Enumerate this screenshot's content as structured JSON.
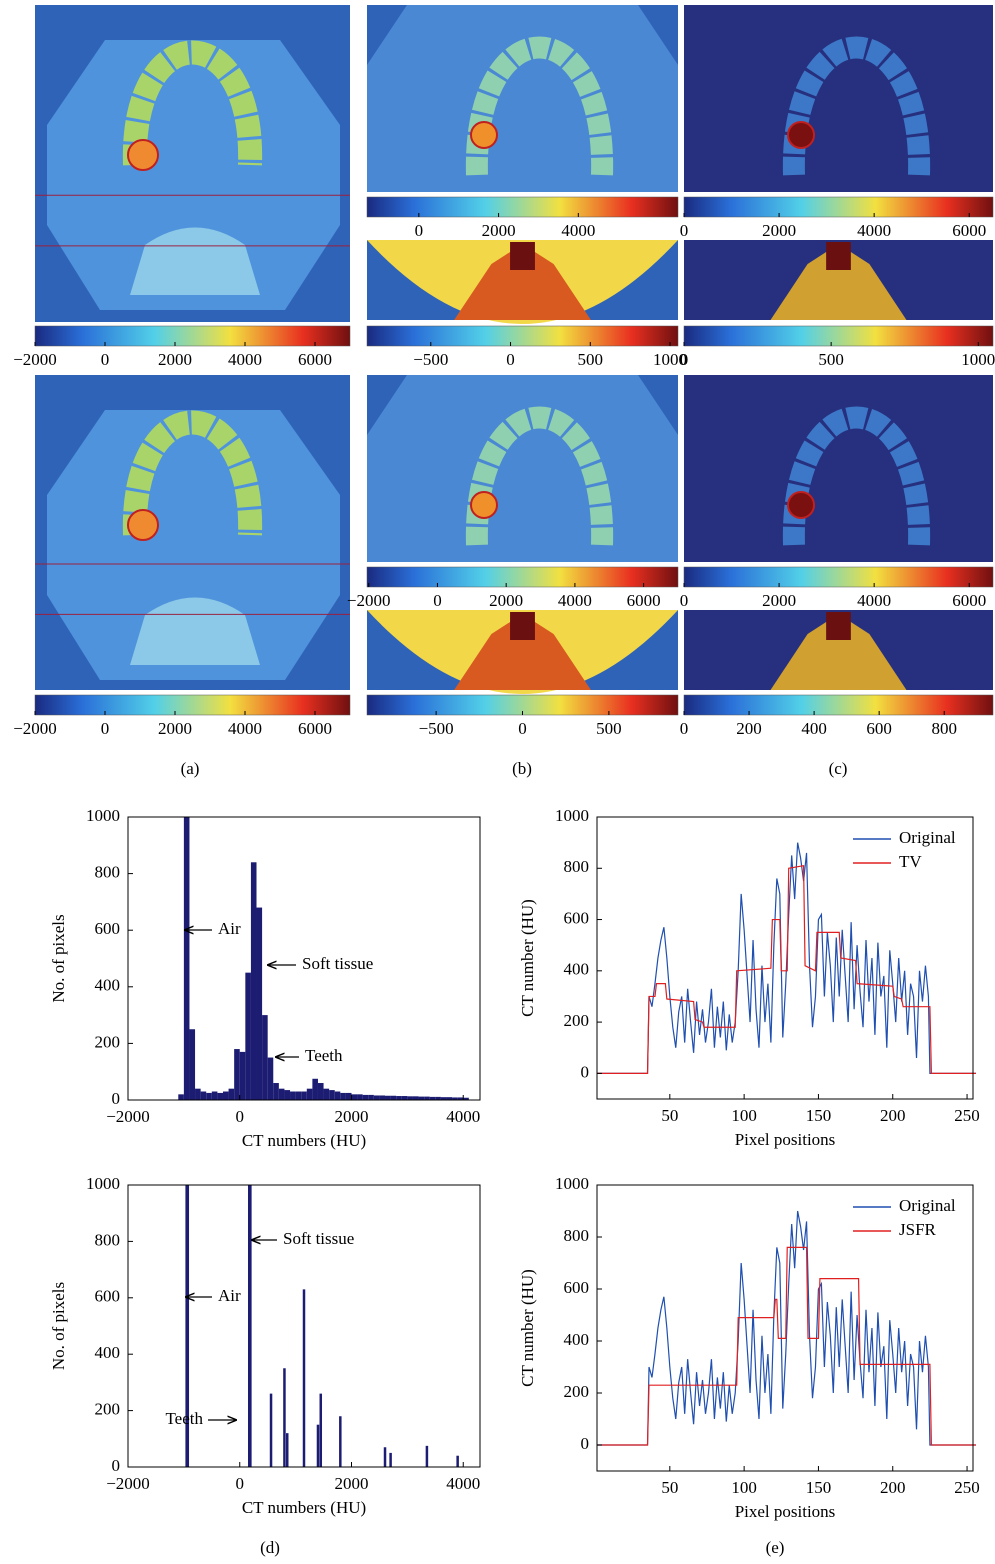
{
  "image_panels": [
    {
      "colorbar_lim": [
        -2000,
        7000
      ],
      "colorbar_ticks": [
        {
          "value": -2000,
          "label": "−2000"
        },
        0,
        2000,
        4000,
        6000
      ]
    },
    {
      "colorbar_lim": [
        -1300,
        6500
      ],
      "colorbar_ticks": [
        0,
        2000,
        4000
      ]
    },
    {
      "colorbar_lim": [
        0,
        6500
      ],
      "colorbar_ticks": [
        0,
        2000,
        4000,
        6000
      ]
    },
    {
      "colorbar_lim": [
        -900,
        1050
      ],
      "colorbar_ticks": [
        {
          "value": -500,
          "label": "−500"
        },
        0,
        500,
        1000
      ]
    },
    {
      "colorbar_lim": [
        0,
        1050
      ],
      "colorbar_ticks": [
        0,
        500,
        1000
      ]
    },
    {
      "colorbar_lim": [
        -2000,
        7000
      ],
      "colorbar_ticks": [
        {
          "value": -2000,
          "label": "−2000"
        },
        0,
        2000,
        4000,
        6000
      ]
    },
    {
      "colorbar_lim": [
        -2050,
        7000
      ],
      "colorbar_ticks": [
        {
          "value": -2000,
          "label": "−2000"
        },
        0,
        2000,
        4000,
        6000
      ]
    },
    {
      "colorbar_lim": [
        0,
        6500
      ],
      "colorbar_ticks": [
        0,
        2000,
        4000,
        6000
      ]
    },
    {
      "colorbar_lim": [
        -900,
        900
      ],
      "colorbar_ticks": [
        {
          "value": -500,
          "label": "−500"
        },
        0,
        500
      ]
    },
    {
      "colorbar_lim": [
        0,
        950
      ],
      "colorbar_ticks": [
        0,
        200,
        400,
        600,
        800
      ]
    }
  ],
  "panel_labels": [
    "(a)",
    "(b)",
    "(c)",
    "(d)",
    "(e)"
  ],
  "chart_data": [
    {
      "type": "histogram",
      "xlabel": "CT numbers (HU)",
      "ylabel": "No. of pixels",
      "color": "#1c1c72",
      "bins": [
        -1100,
        -1000,
        -900,
        -800,
        -700,
        -600,
        -500,
        -400,
        -300,
        -200,
        -100,
        0,
        100,
        200,
        300,
        400,
        500,
        600,
        700,
        800,
        900,
        1000,
        1100,
        1200,
        1300,
        1400,
        1500,
        1600,
        1700,
        1800,
        1900,
        2000,
        2100,
        2200,
        2300,
        2400,
        2500,
        2600,
        2700,
        2800,
        2900,
        3000,
        3100,
        3200,
        3300,
        3400,
        3500,
        3600,
        3700,
        3800,
        3900,
        4000,
        4100
      ],
      "values": [
        20,
        1000,
        250,
        40,
        30,
        25,
        30,
        25,
        30,
        40,
        180,
        170,
        450,
        840,
        680,
        300,
        150,
        60,
        40,
        35,
        30,
        30,
        30,
        40,
        75,
        60,
        40,
        35,
        30,
        25,
        25,
        20,
        20,
        18,
        18,
        16,
        16,
        15,
        15,
        14,
        14,
        13,
        13,
        12,
        12,
        11,
        11,
        10,
        10,
        9,
        9,
        8
      ],
      "xlim": [
        -2000,
        4300
      ],
      "xticks": [
        {
          "value": -2000,
          "label": "−2000"
        },
        0,
        2000,
        4000
      ],
      "ylim": [
        0,
        1000
      ],
      "yticks": [
        0,
        200,
        400,
        600,
        800,
        1000
      ],
      "annotations": [
        "Air",
        "Soft tissue",
        "Teeth"
      ]
    },
    {
      "type": "line",
      "xlabel": "Pixel positions",
      "ylabel": "CT number (HU)",
      "legend": "upper right",
      "xlim": [
        1,
        254
      ],
      "xticks": [
        50,
        100,
        150,
        200,
        250
      ],
      "ylim": [
        -100,
        1000
      ],
      "yticks": [
        0,
        200,
        400,
        600,
        800,
        1000
      ],
      "series": [
        {
          "name": "Original",
          "color": "#1f4fb0",
          "x": [
            1,
            35,
            36,
            38,
            40,
            42,
            44,
            46,
            48,
            50,
            52,
            54,
            56,
            58,
            60,
            62,
            64,
            66,
            68,
            70,
            72,
            74,
            76,
            78,
            80,
            82,
            84,
            86,
            88,
            90,
            92,
            94,
            96,
            98,
            100,
            102,
            104,
            106,
            108,
            110,
            112,
            114,
            116,
            118,
            120,
            122,
            124,
            126,
            128,
            130,
            132,
            134,
            136,
            138,
            140,
            142,
            144,
            146,
            148,
            150,
            152,
            154,
            156,
            158,
            160,
            162,
            164,
            166,
            168,
            170,
            172,
            174,
            176,
            178,
            180,
            182,
            184,
            186,
            188,
            190,
            192,
            194,
            196,
            198,
            200,
            202,
            204,
            206,
            208,
            210,
            212,
            214,
            216,
            218,
            220,
            222,
            224,
            225,
            256
          ],
          "values": [
            0,
            0,
            300,
            260,
            350,
            450,
            520,
            570,
            450,
            300,
            180,
            100,
            240,
            300,
            120,
            330,
            200,
            80,
            280,
            150,
            250,
            120,
            200,
            330,
            100,
            260,
            140,
            280,
            90,
            230,
            120,
            200,
            400,
            700,
            560,
            380,
            200,
            520,
            250,
            100,
            420,
            200,
            350,
            120,
            500,
            760,
            700,
            140,
            350,
            620,
            850,
            680,
            900,
            840,
            750,
            860,
            420,
            180,
            300,
            600,
            620,
            300,
            550,
            420,
            200,
            530,
            300,
            560,
            380,
            200,
            590,
            250,
            500,
            320,
            180,
            520,
            280,
            450,
            150,
            510,
            300,
            380,
            100,
            480,
            350,
            200,
            450,
            280,
            400,
            150,
            350,
            300,
            60,
            400,
            280,
            420,
            300,
            0,
            0
          ]
        },
        {
          "name": "TV",
          "color": "#e02020",
          "x": [
            1,
            35,
            36,
            40,
            41,
            47,
            48,
            66,
            67,
            72,
            73,
            94,
            95,
            118,
            119,
            124,
            125,
            129,
            130,
            140,
            141,
            148,
            149,
            164,
            165,
            175,
            176,
            200,
            201,
            206,
            207,
            225,
            226,
            256
          ],
          "values": [
            0,
            0,
            300,
            300,
            350,
            350,
            290,
            280,
            210,
            200,
            180,
            180,
            400,
            410,
            600,
            600,
            400,
            400,
            800,
            810,
            420,
            400,
            550,
            550,
            450,
            440,
            350,
            340,
            300,
            290,
            260,
            260,
            0,
            0
          ]
        }
      ]
    },
    {
      "type": "stem",
      "xlabel": "CT numbers (HU)",
      "ylabel": "No. of pixels",
      "color": "#1c1c72",
      "x": [
        -950,
        -930,
        170,
        190,
        560,
        800,
        850,
        1150,
        1400,
        1450,
        1800,
        2600,
        2700,
        3350,
        3900
      ],
      "values": [
        1000,
        1000,
        1000,
        1000,
        260,
        350,
        120,
        630,
        150,
        260,
        180,
        70,
        50,
        75,
        40
      ],
      "xlim": [
        -2000,
        4300
      ],
      "xticks": [
        {
          "value": -2000,
          "label": "−2000"
        },
        0,
        2000,
        4000
      ],
      "ylim": [
        0,
        1000
      ],
      "yticks": [
        0,
        200,
        400,
        600,
        800,
        1000
      ],
      "annotations": [
        "Soft tissue",
        "Air",
        "Teeth"
      ]
    },
    {
      "type": "line",
      "xlabel": "Pixel positions",
      "ylabel": "CT number (HU)",
      "legend": "upper right",
      "xlim": [
        1,
        254
      ],
      "xticks": [
        50,
        100,
        150,
        200,
        250
      ],
      "ylim": [
        -100,
        1000
      ],
      "yticks": [
        0,
        200,
        400,
        600,
        800,
        1000
      ],
      "series": [
        {
          "name": "Original",
          "color": "#1f4fb0",
          "x": [
            1,
            35,
            36,
            38,
            40,
            42,
            44,
            46,
            48,
            50,
            52,
            54,
            56,
            58,
            60,
            62,
            64,
            66,
            68,
            70,
            72,
            74,
            76,
            78,
            80,
            82,
            84,
            86,
            88,
            90,
            92,
            94,
            96,
            98,
            100,
            102,
            104,
            106,
            108,
            110,
            112,
            114,
            116,
            118,
            120,
            122,
            124,
            126,
            128,
            130,
            132,
            134,
            136,
            138,
            140,
            142,
            144,
            146,
            148,
            150,
            152,
            154,
            156,
            158,
            160,
            162,
            164,
            166,
            168,
            170,
            172,
            174,
            176,
            178,
            180,
            182,
            184,
            186,
            188,
            190,
            192,
            194,
            196,
            198,
            200,
            202,
            204,
            206,
            208,
            210,
            212,
            214,
            216,
            218,
            220,
            222,
            224,
            225,
            256
          ],
          "values": [
            0,
            0,
            300,
            260,
            350,
            450,
            520,
            570,
            450,
            300,
            180,
            100,
            240,
            300,
            120,
            330,
            200,
            80,
            280,
            150,
            250,
            120,
            200,
            330,
            100,
            260,
            140,
            280,
            90,
            230,
            120,
            200,
            400,
            700,
            560,
            380,
            200,
            520,
            250,
            100,
            420,
            200,
            350,
            120,
            500,
            760,
            700,
            140,
            350,
            620,
            850,
            680,
            900,
            840,
            750,
            860,
            420,
            180,
            300,
            600,
            620,
            300,
            550,
            420,
            200,
            530,
            300,
            560,
            380,
            200,
            590,
            250,
            500,
            320,
            180,
            520,
            280,
            450,
            150,
            510,
            300,
            380,
            100,
            480,
            350,
            200,
            450,
            280,
            400,
            150,
            350,
            300,
            60,
            400,
            280,
            420,
            300,
            0,
            0
          ]
        },
        {
          "name": "JSFR",
          "color": "#e02020",
          "x": [
            1,
            35,
            36,
            95,
            96,
            120,
            121,
            122,
            123,
            128,
            129,
            142,
            143,
            150,
            151,
            177,
            178,
            225,
            226,
            256
          ],
          "values": [
            0,
            0,
            230,
            230,
            490,
            490,
            560,
            560,
            410,
            410,
            760,
            760,
            410,
            410,
            640,
            640,
            310,
            310,
            0,
            0
          ]
        }
      ]
    }
  ]
}
